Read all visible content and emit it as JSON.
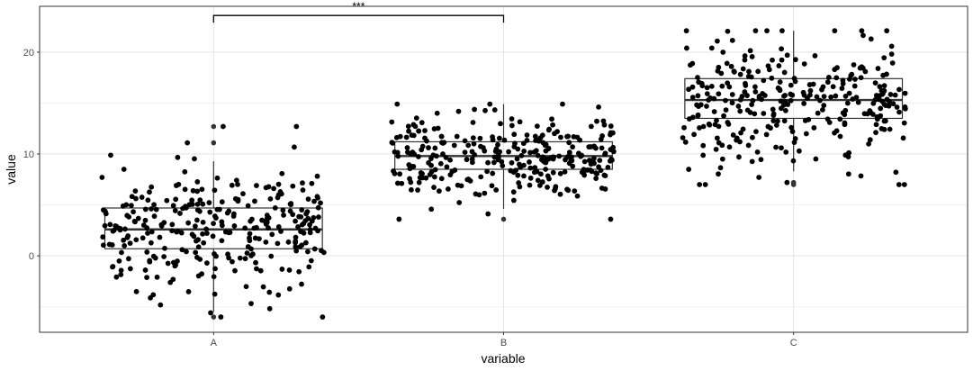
{
  "chart_data": {
    "type": "boxplot",
    "xlabel": "variable",
    "ylabel": "value",
    "categories": [
      "A",
      "B",
      "C"
    ],
    "ylim": [
      -7.5,
      24.5
    ],
    "y_ticks": [
      0,
      10,
      20
    ],
    "y_tick_labels": [
      "0",
      "10",
      "20"
    ],
    "grid": true,
    "boxes": [
      {
        "category": "A",
        "whisker_low": -5.5,
        "q1": 0.7,
        "median": 2.6,
        "q3": 4.7,
        "whisker_high": 9.3,
        "outliers": [
          12.7,
          11.1,
          -6.0
        ]
      },
      {
        "category": "B",
        "whisker_low": 4.6,
        "q1": 8.5,
        "median": 9.8,
        "q3": 11.2,
        "whisker_high": 14.9,
        "outliers": [
          3.6
        ]
      },
      {
        "category": "C",
        "whisker_low": 8.3,
        "q1": 13.5,
        "median": 15.3,
        "q3": 17.4,
        "whisker_high": 22.1,
        "outliers": [
          7.0,
          7.2
        ]
      }
    ],
    "points": {
      "A": {
        "n": 300,
        "mean": 2.6,
        "sd": 3.0,
        "min": -6.0,
        "max": 12.7
      },
      "B": {
        "n": 300,
        "mean": 9.8,
        "sd": 2.0,
        "min": 3.6,
        "max": 14.9
      },
      "C": {
        "n": 300,
        "mean": 15.3,
        "sd": 3.0,
        "min": 7.0,
        "max": 22.1
      }
    },
    "annotations": [
      {
        "type": "significance_bracket",
        "from": "A",
        "to": "B",
        "y": 23.6,
        "label": "***"
      }
    ]
  }
}
